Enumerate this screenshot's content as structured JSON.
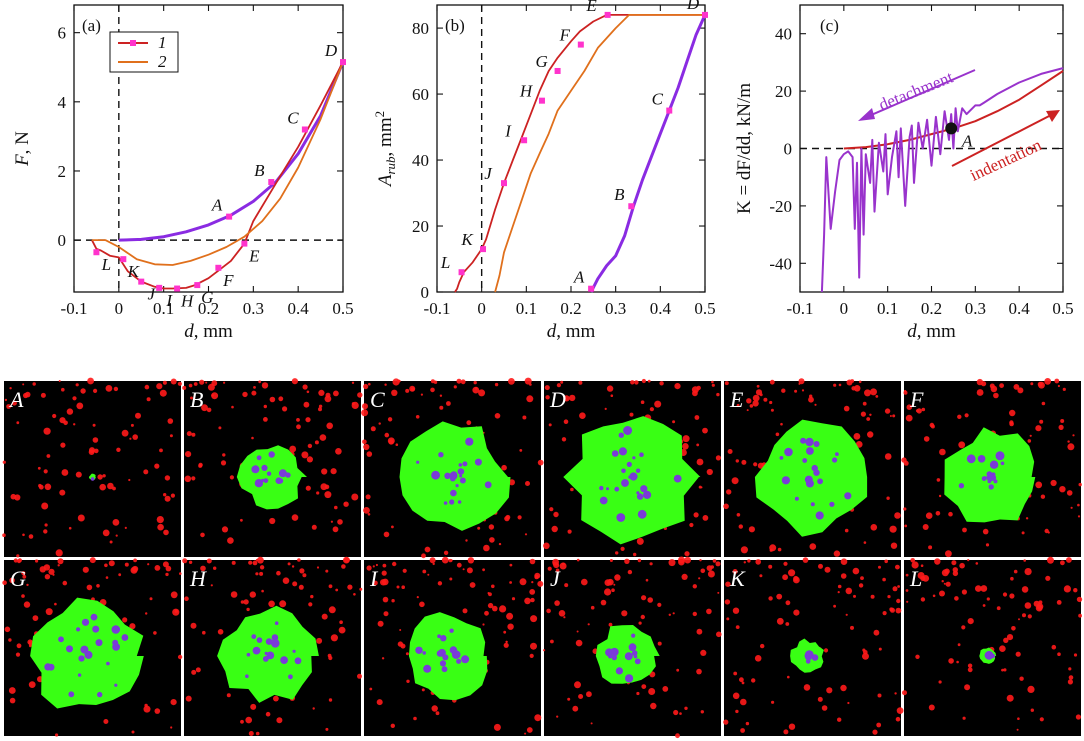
{
  "colors": {
    "curve1": "#8a2be2",
    "curve2": "#e0701c",
    "marker": "#ff33cc",
    "indent": "#cc2222",
    "kline": "#9933cc",
    "frameBg": "#000000",
    "contact": "#39ff14",
    "dots": "#ff1a1a",
    "bubbles": "#7a3ad8"
  },
  "chart_data": [
    {
      "id": "a",
      "type": "line",
      "panel_label": "(a)",
      "xlabel_var": "d",
      "xlabel_unit": ", mm",
      "ylabel_var": "F",
      "ylabel_unit": ", N",
      "xlim": [
        -0.1,
        0.5
      ],
      "ylim": [
        -1.5,
        6.8
      ],
      "xticks": [
        -0.1,
        0,
        0.1,
        0.2,
        0.3,
        0.4,
        0.5
      ],
      "xtick_labels": [
        "-0.1",
        "0",
        "0.1",
        "0.2",
        "0.3",
        "0.4",
        "0.5"
      ],
      "yticks": [
        0,
        2,
        4,
        6
      ],
      "ytick_labels": [
        "0",
        "2",
        "4",
        "6"
      ],
      "legend": [
        {
          "label": "1",
          "series": "1"
        },
        {
          "label": "2",
          "series": "2"
        }
      ],
      "series": [
        {
          "name": "1",
          "role": "indentation",
          "color": "curve1",
          "x": [
            0,
            0.05,
            0.1,
            0.15,
            0.2,
            0.25,
            0.3,
            0.35,
            0.4,
            0.45,
            0.5
          ],
          "y": [
            0,
            0.02,
            0.1,
            0.24,
            0.44,
            0.72,
            1.12,
            1.68,
            2.5,
            3.6,
            5.15
          ]
        },
        {
          "name": "1",
          "role": "detachment",
          "color": "indent",
          "x": [
            0.5,
            0.45,
            0.4,
            0.36,
            0.33,
            0.3,
            0.28,
            0.25,
            0.22,
            0.2,
            0.17,
            0.15,
            0.12,
            0.1,
            0.08,
            0.05,
            0.02,
            0,
            -0.02,
            -0.04,
            -0.05,
            -0.06
          ],
          "y": [
            5.15,
            3.9,
            2.7,
            1.85,
            1.2,
            0.55,
            -0.1,
            -0.6,
            -0.9,
            -1.1,
            -1.3,
            -1.38,
            -1.4,
            -1.4,
            -1.35,
            -1.2,
            -0.9,
            -0.5,
            -0.45,
            -0.3,
            -0.25,
            0
          ]
        },
        {
          "name": "2",
          "role": "curve",
          "color": "curve2",
          "x": [
            -0.06,
            -0.03,
            0,
            0.04,
            0.08,
            0.12,
            0.16,
            0.2,
            0.24,
            0.28,
            0.32,
            0.36,
            0.4,
            0.45,
            0.5
          ],
          "y": [
            0,
            0,
            -0.2,
            -0.55,
            -0.7,
            -0.72,
            -0.6,
            -0.42,
            -0.2,
            0.1,
            0.55,
            1.2,
            2.1,
            3.5,
            5.15
          ]
        }
      ],
      "points": [
        {
          "label": "A",
          "x": 0.246,
          "y": 0.68
        },
        {
          "label": "B",
          "x": 0.34,
          "y": 1.68
        },
        {
          "label": "C",
          "x": 0.415,
          "y": 3.2
        },
        {
          "label": "D",
          "x": 0.5,
          "y": 5.15
        },
        {
          "label": "E",
          "x": 0.28,
          "y": -0.1
        },
        {
          "label": "F",
          "x": 0.222,
          "y": -0.8
        },
        {
          "label": "G",
          "x": 0.175,
          "y": -1.3
        },
        {
          "label": "H",
          "x": 0.13,
          "y": -1.4
        },
        {
          "label": "I",
          "x": 0.09,
          "y": -1.38
        },
        {
          "label": "J",
          "x": 0.05,
          "y": -1.2
        },
        {
          "label": "K",
          "x": 0.01,
          "y": -0.55
        },
        {
          "label": "L",
          "x": -0.05,
          "y": -0.35
        }
      ]
    },
    {
      "id": "b",
      "type": "line",
      "panel_label": "(b)",
      "xlabel_var": "d",
      "xlabel_unit": ", mm",
      "ylabel_var": "A",
      "ylabel_sub": "rub",
      "ylabel_unit": ", mm",
      "ylabel_sup": "2",
      "xlim": [
        -0.1,
        0.5
      ],
      "ylim": [
        0,
        87
      ],
      "xticks": [
        -0.1,
        0,
        0.1,
        0.2,
        0.3,
        0.4,
        0.5
      ],
      "xtick_labels": [
        "-0.1",
        "0",
        "0.1",
        "0.2",
        "0.3",
        "0.4",
        "0.5"
      ],
      "yticks": [
        0,
        20,
        40,
        60,
        80
      ],
      "ytick_labels": [
        "0",
        "20",
        "40",
        "60",
        "80"
      ],
      "series": [
        {
          "name": "1",
          "role": "indentation",
          "color": "curve1",
          "x": [
            0.245,
            0.26,
            0.28,
            0.3,
            0.32,
            0.34,
            0.36,
            0.38,
            0.4,
            0.42,
            0.44,
            0.46,
            0.48,
            0.5
          ],
          "y": [
            0,
            4,
            8,
            11,
            17,
            26,
            34,
            41,
            48,
            55,
            62,
            70,
            78,
            84
          ]
        },
        {
          "name": "1",
          "role": "detachment",
          "color": "indent",
          "x": [
            0.5,
            0.4,
            0.3,
            0.28,
            0.25,
            0.22,
            0.2,
            0.17,
            0.15,
            0.13,
            0.11,
            0.09,
            0.07,
            0.05,
            0.03,
            0.01,
            0,
            -0.02,
            -0.04,
            -0.05,
            -0.055,
            -0.06
          ],
          "y": [
            84,
            84,
            84,
            84,
            82,
            79,
            76,
            71,
            67,
            61,
            54,
            47,
            40,
            33,
            25,
            16,
            13,
            9,
            6,
            3,
            1,
            0
          ]
        },
        {
          "name": "2",
          "role": "curve",
          "color": "curve2",
          "x": [
            0.03,
            0.04,
            0.05,
            0.07,
            0.09,
            0.11,
            0.13,
            0.15,
            0.17,
            0.2,
            0.23,
            0.26,
            0.3,
            0.33,
            0.35,
            0.4,
            0.5
          ],
          "y": [
            0,
            5,
            12,
            20,
            28,
            36,
            42,
            48,
            55,
            61,
            67,
            74,
            80,
            84,
            84,
            84,
            84
          ]
        }
      ],
      "points": [
        {
          "label": "A",
          "x": 0.245,
          "y": 1
        },
        {
          "label": "B",
          "x": 0.335,
          "y": 26
        },
        {
          "label": "C",
          "x": 0.42,
          "y": 55
        },
        {
          "label": "D",
          "x": 0.5,
          "y": 84
        },
        {
          "label": "E",
          "x": 0.282,
          "y": 84
        },
        {
          "label": "F",
          "x": 0.222,
          "y": 75
        },
        {
          "label": "G",
          "x": 0.17,
          "y": 67
        },
        {
          "label": "H",
          "x": 0.135,
          "y": 58
        },
        {
          "label": "I",
          "x": 0.095,
          "y": 46
        },
        {
          "label": "J",
          "x": 0.05,
          "y": 33
        },
        {
          "label": "K",
          "x": 0.003,
          "y": 13
        },
        {
          "label": "L",
          "x": -0.045,
          "y": 6
        }
      ],
      "zero_line": "vertical"
    },
    {
      "id": "c",
      "type": "line",
      "panel_label": "(c)",
      "xlabel_var": "d",
      "xlabel_unit": ", mm",
      "ylabel_text": "K = dF/dd, kN/m",
      "xlim": [
        -0.1,
        0.5
      ],
      "ylim": [
        -50,
        50
      ],
      "xticks": [
        -0.1,
        0,
        0.1,
        0.2,
        0.3,
        0.4,
        0.5
      ],
      "xtick_labels": [
        "-0.1",
        "0",
        "0.1",
        "0.2",
        "0.3",
        "0.4",
        "0.5"
      ],
      "yticks": [
        -40,
        -20,
        0,
        20,
        40
      ],
      "ytick_labels": [
        "-40",
        "-20",
        "0",
        "20",
        "40"
      ],
      "series": [
        {
          "name": "indentation",
          "color": "indent",
          "x": [
            0,
            0.05,
            0.1,
            0.15,
            0.2,
            0.25,
            0.3,
            0.35,
            0.4,
            0.45,
            0.5
          ],
          "y": [
            0,
            0.5,
            1.5,
            3,
            5,
            7,
            9.5,
            13,
            17,
            22,
            27
          ]
        },
        {
          "name": "detachment",
          "color": "kline",
          "x": [
            0.5,
            0.45,
            0.4,
            0.35,
            0.32,
            0.31,
            0.3,
            0.28,
            0.27,
            0.26,
            0.255,
            0.25,
            0.245,
            0.24,
            0.23,
            0.22,
            0.21,
            0.2,
            0.19,
            0.18,
            0.17,
            0.16,
            0.155,
            0.15,
            0.14,
            0.13,
            0.125,
            0.12,
            0.11,
            0.1,
            0.095,
            0.09,
            0.08,
            0.07,
            0.065,
            0.06,
            0.05,
            0.045,
            0.04,
            0.035,
            0.03,
            0.025,
            0.02,
            0.01,
            0,
            -0.01,
            -0.02,
            -0.03,
            -0.04,
            -0.045,
            -0.05
          ],
          "y": [
            28,
            26,
            23,
            19,
            16,
            15,
            15,
            12,
            14,
            6,
            14,
            0,
            12,
            3,
            13,
            -2,
            11,
            -6,
            10,
            0,
            9,
            -12,
            8,
            4,
            -20,
            7,
            -10,
            6,
            -3,
            -16,
            5,
            -8,
            2,
            -22,
            3,
            -12,
            -2,
            -30,
            0,
            -45,
            -5,
            -28,
            -3,
            -1,
            -2,
            -4,
            -15,
            -28,
            -3,
            -30,
            -50
          ]
        }
      ],
      "annotations": [
        {
          "text": "detachment",
          "color": "kline"
        },
        {
          "text": "indentation",
          "color": "indent"
        }
      ],
      "points": [
        {
          "label": "A",
          "x": 0.245,
          "y": 7
        }
      ]
    }
  ],
  "frames": [
    {
      "label": "A",
      "size": 0.04
    },
    {
      "label": "B",
      "size": 0.4
    },
    {
      "label": "C",
      "size": 0.68
    },
    {
      "label": "D",
      "size": 0.78
    },
    {
      "label": "E",
      "size": 0.68
    },
    {
      "label": "F",
      "size": 0.58
    },
    {
      "label": "G",
      "size": 0.7
    },
    {
      "label": "H",
      "size": 0.58
    },
    {
      "label": "I",
      "size": 0.52
    },
    {
      "label": "J",
      "size": 0.4
    },
    {
      "label": "K",
      "size": 0.2
    },
    {
      "label": "L",
      "size": 0.1
    }
  ]
}
